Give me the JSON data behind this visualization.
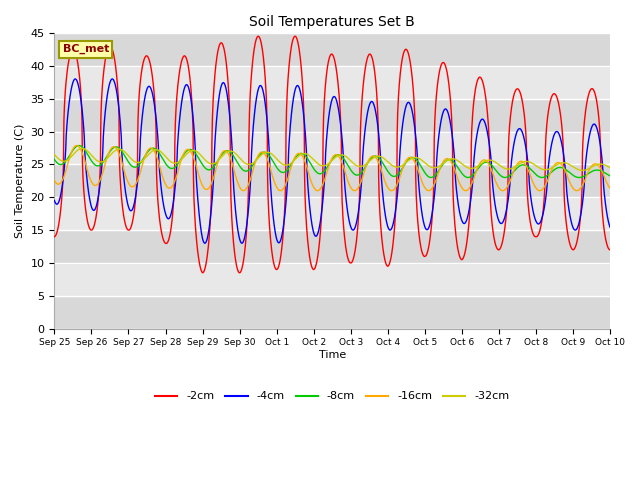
{
  "title": "Soil Temperatures Set B",
  "xlabel": "Time",
  "ylabel": "Soil Temperature (C)",
  "ylim": [
    0,
    45
  ],
  "figsize": [
    6.4,
    4.8
  ],
  "dpi": 100,
  "legend_label": "BC_met",
  "series_labels": [
    "-2cm",
    "-4cm",
    "-8cm",
    "-16cm",
    "-32cm"
  ],
  "series_colors": [
    "#ff0000",
    "#0000ff",
    "#00cc00",
    "#ffaa00",
    "#cccc00"
  ],
  "x_tick_labels": [
    "Sep 25",
    "Sep 26",
    "Sep 27",
    "Sep 28",
    "Sep 29",
    "Sep 30",
    "Oct 1",
    "Oct 2",
    "Oct 3",
    "Oct 4",
    "Oct 5",
    "Oct 6",
    "Oct 7",
    "Oct 8",
    "Oct 9",
    "Oct 10"
  ],
  "n_days": 15,
  "points_per_day": 144,
  "band_colors": [
    "#d8d8d8",
    "#e8e8e8"
  ],
  "band_breaks": [
    0,
    5,
    10,
    15,
    20,
    25,
    30,
    35,
    40,
    45
  ]
}
